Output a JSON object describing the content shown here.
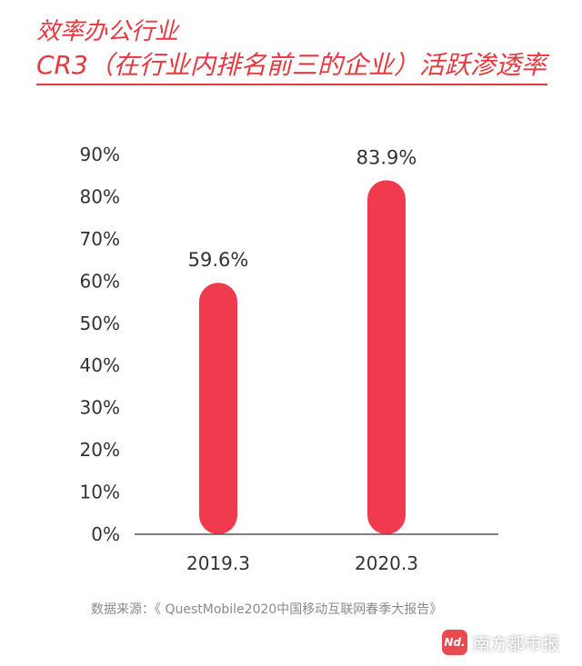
{
  "header": {
    "title": "效率办公行业",
    "subtitle": "CR3（在行业内排名前三的企业）活跃渗透率"
  },
  "chart_data": {
    "type": "bar",
    "categories": [
      "2019.3",
      "2020.3"
    ],
    "values": [
      59.6,
      83.9
    ],
    "value_labels": [
      "59.6%",
      "83.9%"
    ],
    "ylim": [
      0,
      90
    ],
    "yticks": [
      "0%",
      "10%",
      "20%",
      "30%",
      "40%",
      "50%",
      "60%",
      "70%",
      "80%",
      "90%"
    ],
    "grid": false,
    "bar_color": "#f03a4e"
  },
  "footer": {
    "source": "数据来源：《 QuestMobile2020中国移动互联网春季大报告》",
    "brand_logo": "Nd.",
    "brand_name": "南方都市报"
  },
  "colors": {
    "accent": "#e5383f",
    "bar": "#f03a4e",
    "text": "#333333",
    "muted": "#8a8a8a"
  }
}
